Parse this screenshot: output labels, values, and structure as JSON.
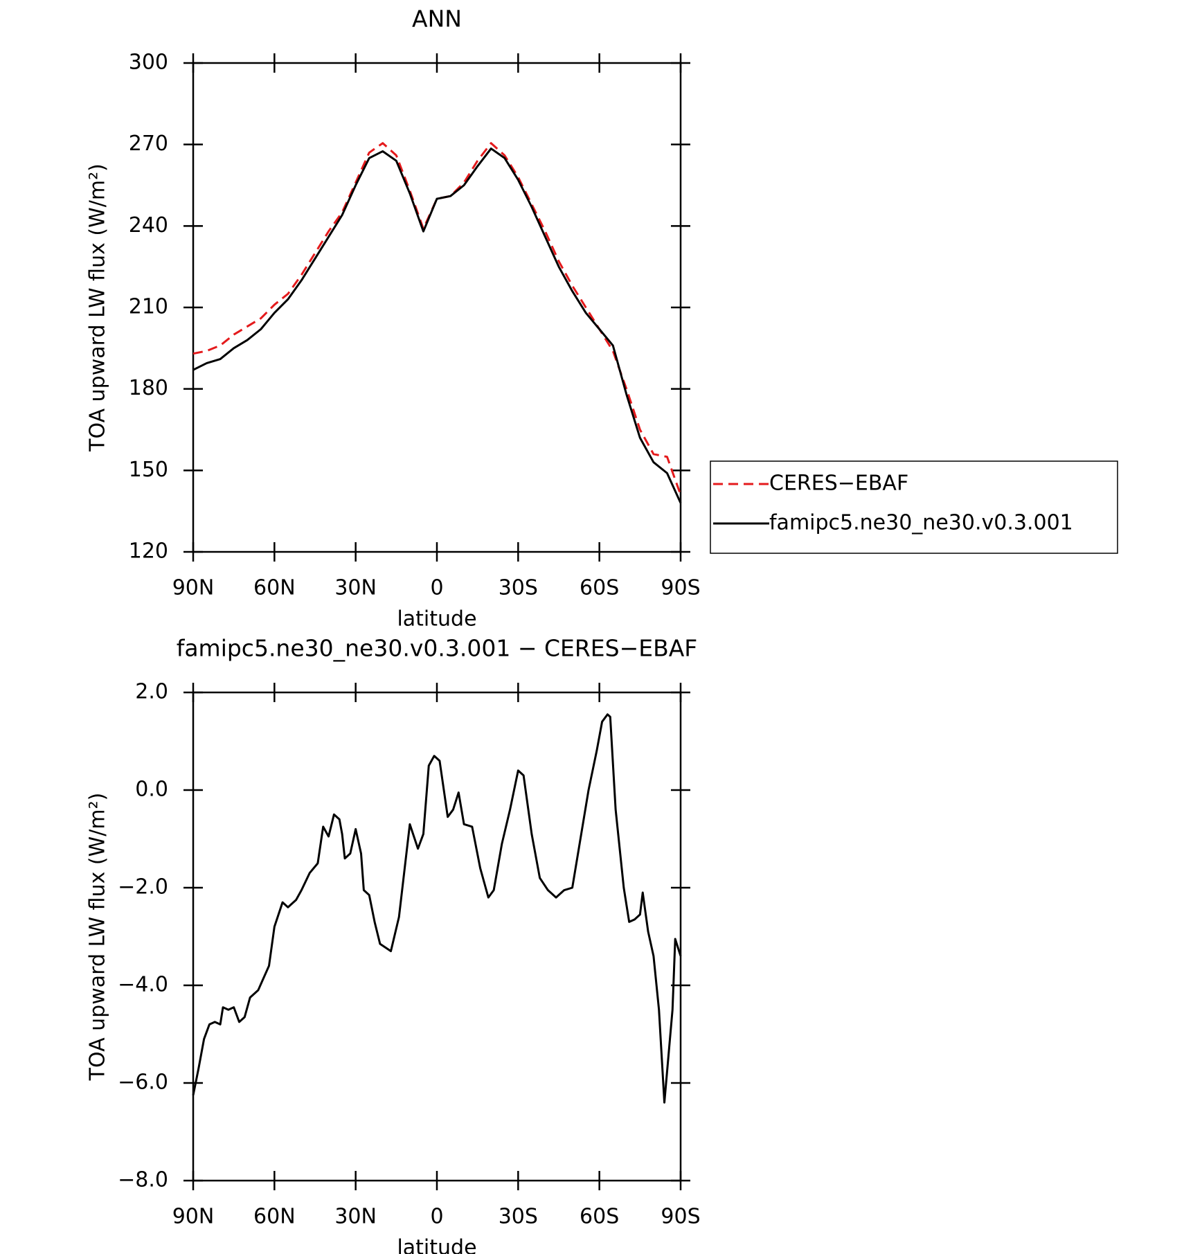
{
  "chart_data": [
    {
      "type": "line",
      "title": "ANN",
      "xlabel": "latitude",
      "ylabel": "TOA upward LW flux (W/m²)",
      "xlim": [
        90,
        -90
      ],
      "xticks": [
        {
          "value": 90,
          "label": "90N"
        },
        {
          "value": 60,
          "label": "60N"
        },
        {
          "value": 30,
          "label": "30N"
        },
        0,
        {
          "value": -30,
          "label": "30S"
        },
        {
          "value": -60,
          "label": "60S"
        },
        {
          "value": -90,
          "label": "90S"
        }
      ],
      "ylim": [
        120,
        300
      ],
      "yticks": [
        120,
        150,
        180,
        210,
        240,
        270,
        300
      ],
      "legend": "outside right",
      "x": [
        90,
        85,
        80,
        75,
        70,
        65,
        60,
        55,
        50,
        45,
        40,
        35,
        30,
        25,
        20,
        15,
        10,
        5,
        0,
        -5,
        -10,
        -15,
        -20,
        -25,
        -30,
        -35,
        -40,
        -45,
        -50,
        -55,
        -60,
        -65,
        -70,
        -75,
        -80,
        -85,
        -90
      ],
      "series": [
        {
          "name": "CERES−EBAF",
          "color": "#e41a1c",
          "linestyle": "dashed",
          "values": [
            193,
            194,
            196,
            200,
            203,
            206,
            211,
            215,
            222,
            230,
            238,
            245,
            256,
            267,
            270.5,
            266,
            253,
            239,
            250,
            251,
            256,
            264,
            270.5,
            266,
            258,
            248,
            238,
            227,
            218,
            210,
            202,
            194,
            180,
            165,
            156,
            155,
            141
          ]
        },
        {
          "name": "famipc5.ne30_ne30.v0.3.001",
          "color": "#000000",
          "linestyle": "solid",
          "values": [
            187,
            189.5,
            191,
            195,
            198,
            202,
            208,
            213,
            220,
            228,
            236,
            244,
            255,
            265,
            267.5,
            264,
            252,
            238,
            250,
            251,
            255,
            262,
            268.5,
            265,
            257,
            247,
            236,
            225,
            216,
            208,
            202,
            196,
            178,
            162,
            153,
            149,
            138
          ]
        }
      ]
    },
    {
      "type": "line",
      "title": "famipc5.ne30_ne30.v0.3.001 − CERES−EBAF",
      "xlabel": "latitude",
      "ylabel": "TOA upward LW flux (W/m²)",
      "xlim": [
        90,
        -90
      ],
      "xticks": [
        {
          "value": 90,
          "label": "90N"
        },
        {
          "value": 60,
          "label": "60N"
        },
        {
          "value": 30,
          "label": "30N"
        },
        0,
        {
          "value": -30,
          "label": "30S"
        },
        {
          "value": -60,
          "label": "60S"
        },
        {
          "value": -90,
          "label": "90S"
        }
      ],
      "ylim": [
        -8,
        2
      ],
      "yticks": [
        {
          "value": -8,
          "label": "−8.0"
        },
        {
          "value": -6,
          "label": "−6.0"
        },
        {
          "value": -4,
          "label": "−4.0"
        },
        {
          "value": -2,
          "label": "−2.0"
        },
        {
          "value": 0,
          "label": "0.0"
        },
        {
          "value": 2,
          "label": "2.0"
        }
      ],
      "x": [
        90,
        88,
        86,
        84,
        82,
        80,
        79,
        77,
        75,
        73,
        71,
        69,
        66,
        64,
        62,
        60,
        57,
        55,
        52,
        50,
        47,
        44,
        42,
        40,
        38,
        36,
        35,
        34,
        32,
        30,
        28,
        27,
        25,
        23,
        21,
        17,
        14,
        10,
        7,
        5,
        3,
        1,
        -1,
        -4,
        -6,
        -8,
        -10,
        -13,
        -16,
        -19,
        -21,
        -24,
        -27,
        -30,
        -32,
        -35,
        -38,
        -41,
        -44,
        -47,
        -50,
        -53,
        -56,
        -59,
        -61,
        -63,
        -64,
        -66,
        -69,
        -71,
        -73,
        -75,
        -76,
        -78,
        -80,
        -82,
        -84,
        -87,
        -88,
        -90
      ],
      "series": [
        {
          "color": "#000000",
          "linestyle": "solid",
          "values": [
            -6.25,
            -5.7,
            -5.1,
            -4.8,
            -4.75,
            -4.8,
            -4.45,
            -4.5,
            -4.45,
            -4.75,
            -4.65,
            -4.25,
            -4.1,
            -3.85,
            -3.6,
            -2.8,
            -2.3,
            -2.4,
            -2.25,
            -2.05,
            -1.7,
            -1.5,
            -0.75,
            -0.95,
            -0.5,
            -0.6,
            -0.9,
            -1.4,
            -1.3,
            -0.8,
            -1.3,
            -2.05,
            -2.15,
            -2.7,
            -3.15,
            -3.3,
            -2.6,
            -0.7,
            -1.2,
            -0.9,
            0.5,
            0.7,
            0.6,
            -0.55,
            -0.4,
            -0.05,
            -0.7,
            -0.75,
            -1.6,
            -2.2,
            -2.05,
            -1.1,
            -0.4,
            0.4,
            0.3,
            -0.9,
            -1.8,
            -2.05,
            -2.2,
            -2.05,
            -2.0,
            -1.0,
            0.0,
            0.8,
            1.4,
            1.55,
            1.5,
            -0.4,
            -2.0,
            -2.7,
            -2.65,
            -2.55,
            -2.1,
            -2.9,
            -3.4,
            -4.5,
            -6.4,
            -4.5,
            -3.05,
            -3.4
          ]
        }
      ]
    }
  ]
}
